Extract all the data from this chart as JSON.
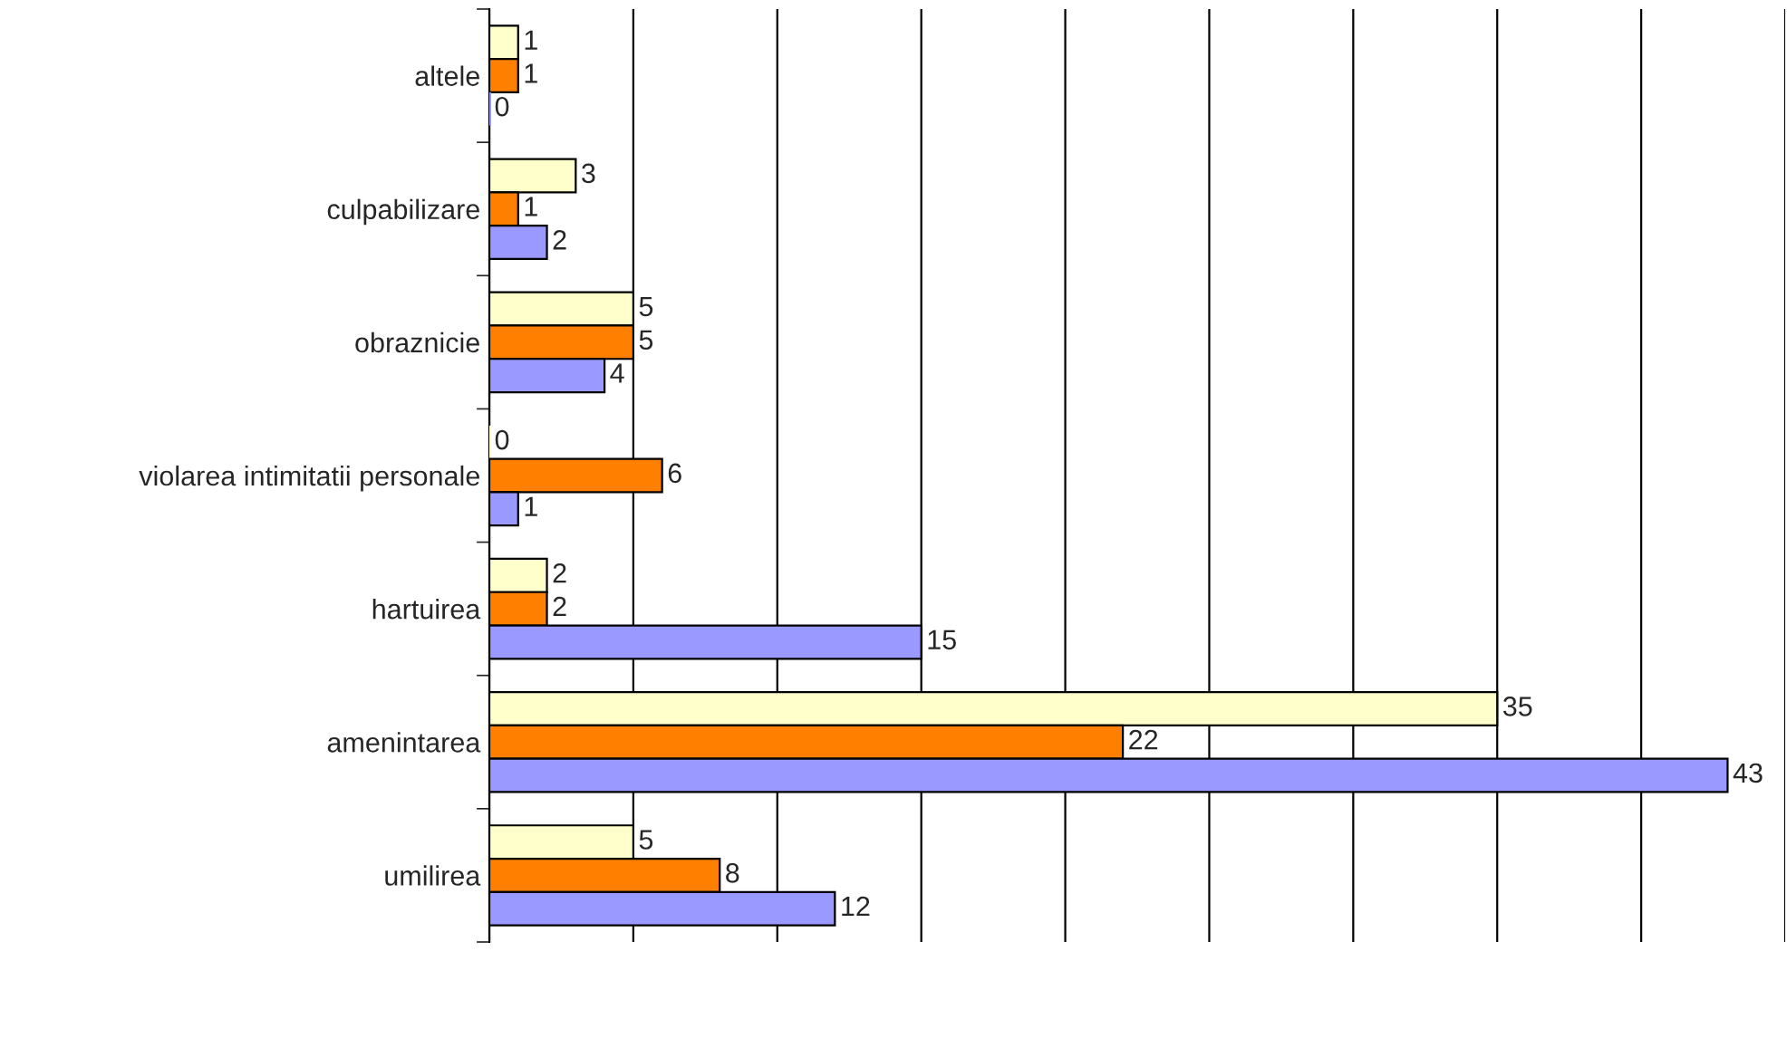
{
  "chart_data": {
    "type": "bar",
    "orientation": "horizontal",
    "categories": [
      "altele",
      "culpabilizare",
      "obraznicie",
      "violarea intimitatii personale",
      "hartuirea",
      "amenintarea",
      "umilirea"
    ],
    "series": [
      {
        "color": "#ffffcc",
        "values": [
          1,
          3,
          5,
          0,
          2,
          35,
          5
        ]
      },
      {
        "color": "#ff8000",
        "values": [
          1,
          1,
          5,
          6,
          2,
          22,
          8
        ]
      },
      {
        "color": "#9999ff",
        "values": [
          0,
          2,
          4,
          1,
          15,
          43,
          12
        ]
      }
    ],
    "xlim": [
      0,
      45
    ],
    "xticks": [
      {
        "value": 0,
        "label": null
      },
      {
        "value": 5,
        "label": null
      },
      {
        "value": 10,
        "label": null
      },
      {
        "value": 15,
        "label": null
      },
      {
        "value": 20,
        "label": null
      },
      {
        "value": 25,
        "label": null
      },
      {
        "value": 30,
        "label": null
      },
      {
        "value": 35,
        "label": null
      },
      {
        "value": 40,
        "label": null
      },
      {
        "value": 45,
        "label": null
      }
    ],
    "grid": "x",
    "data_labels": true,
    "tick_labels": "y"
  }
}
